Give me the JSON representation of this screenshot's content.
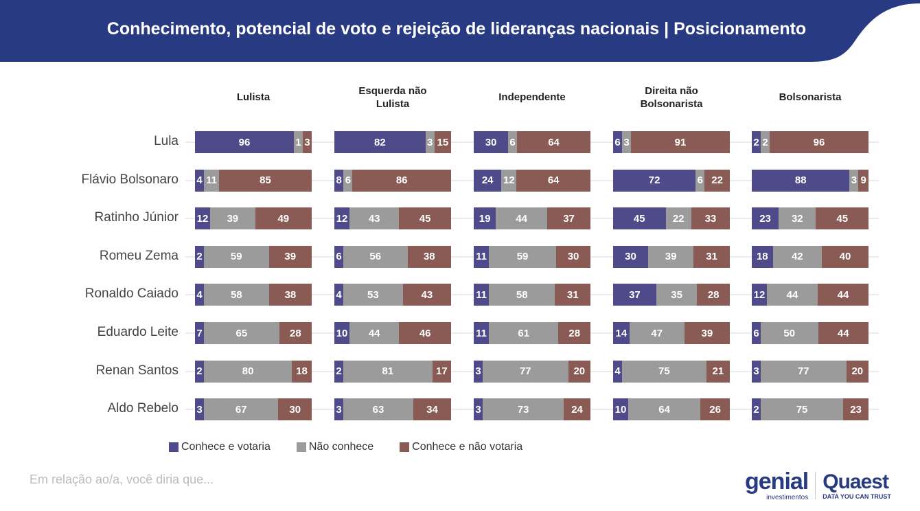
{
  "title": "Conhecimento, potencial de voto e rejeição de lideranças nacionais | Posicionamento",
  "colors": {
    "header": "#283a82",
    "votaria": "#4f4b8a",
    "nao_conhece": "#9b9b9b",
    "nao_votaria": "#8a5a55"
  },
  "footnote": "Em relação ao/a, você diria que...",
  "logos": {
    "genial": "genial",
    "genial_sub": "investimentos",
    "quaest": "Quaest",
    "quaest_sub": "DATA YOU CAN TRUST"
  },
  "chart_data": {
    "type": "bar",
    "stacked": true,
    "orientation": "horizontal",
    "categories": [
      "Lula",
      "Flávio Bolsonaro",
      "Ratinho Júnior",
      "Romeu Zema",
      "Ronaldo Caiado",
      "Eduardo Leite",
      "Renan Santos",
      "Aldo Rebelo"
    ],
    "legend": [
      "Conhece e votaria",
      "Não conhece",
      "Conhece e não votaria"
    ],
    "legend_position": "bottom",
    "panels": [
      {
        "title": "Lulista",
        "values": [
          [
            96,
            1,
            3
          ],
          [
            4,
            11,
            85
          ],
          [
            12,
            39,
            49
          ],
          [
            2,
            59,
            39
          ],
          [
            4,
            58,
            38
          ],
          [
            7,
            65,
            28
          ],
          [
            2,
            80,
            18
          ],
          [
            3,
            67,
            30
          ]
        ]
      },
      {
        "title": "Esquerda não Lulista",
        "values": [
          [
            82,
            3,
            15
          ],
          [
            8,
            6,
            86
          ],
          [
            12,
            43,
            45
          ],
          [
            6,
            56,
            38
          ],
          [
            4,
            53,
            43
          ],
          [
            10,
            44,
            46
          ],
          [
            2,
            81,
            17
          ],
          [
            3,
            63,
            34
          ]
        ]
      },
      {
        "title": "Independente",
        "values": [
          [
            30,
            6,
            64
          ],
          [
            24,
            12,
            64
          ],
          [
            19,
            44,
            37
          ],
          [
            11,
            59,
            30
          ],
          [
            11,
            58,
            31
          ],
          [
            11,
            61,
            28
          ],
          [
            3,
            77,
            20
          ],
          [
            3,
            73,
            24
          ]
        ]
      },
      {
        "title": "Direita não Bolsonarista",
        "values": [
          [
            6,
            3,
            91
          ],
          [
            72,
            6,
            22
          ],
          [
            45,
            22,
            33
          ],
          [
            30,
            39,
            31
          ],
          [
            37,
            35,
            28
          ],
          [
            14,
            47,
            39
          ],
          [
            4,
            75,
            21
          ],
          [
            10,
            64,
            26
          ]
        ]
      },
      {
        "title": "Bolsonarista",
        "values": [
          [
            2,
            2,
            96
          ],
          [
            88,
            3,
            9
          ],
          [
            23,
            32,
            45
          ],
          [
            18,
            42,
            40
          ],
          [
            12,
            44,
            44
          ],
          [
            6,
            50,
            44
          ],
          [
            3,
            77,
            20
          ],
          [
            2,
            75,
            23
          ]
        ]
      }
    ]
  }
}
